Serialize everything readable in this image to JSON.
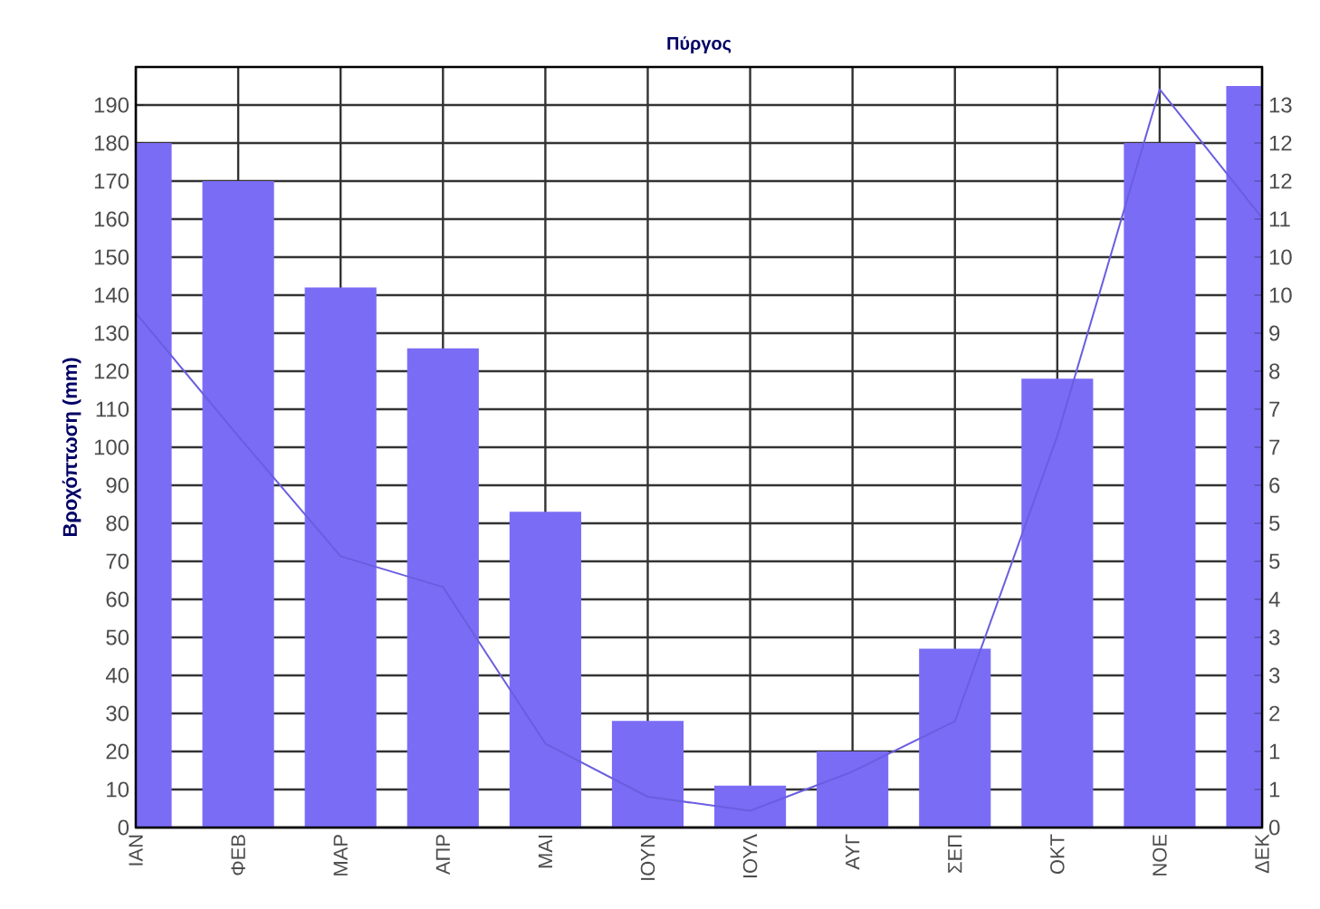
{
  "chart_data": {
    "type": "bar",
    "title": "Πύργος",
    "ylabel": "Βροχόπτωση (mm)",
    "categories": [
      "ΙΑΝ",
      "ΦΕΒ",
      "ΜΑΡ",
      "ΑΠΡ",
      "ΜΑΙ",
      "ΙΟΥΝ",
      "ΙΟΥΛ",
      "ΑΥΓ",
      "ΣΕΠ",
      "ΟΚΤ",
      "ΝΟΕ",
      "ΔΕΚ"
    ],
    "series": [
      {
        "color": "#7b6cf6",
        "values": [
          180,
          170,
          142,
          126,
          83,
          28,
          11,
          20,
          47,
          118,
          180,
          195
        ]
      },
      {
        "type": "line",
        "axis": "y2",
        "color": "#6a5ee0",
        "values": [
          9.2,
          7.0,
          4.85,
          4.3,
          1.5,
          0.55,
          0.3,
          1.0,
          1.9,
          7.0,
          13.2,
          10.9
        ]
      }
    ],
    "ylim": [
      0,
      200
    ],
    "yticks": [
      0,
      10,
      20,
      30,
      40,
      50,
      60,
      70,
      80,
      90,
      100,
      110,
      120,
      130,
      140,
      150,
      160,
      170,
      180,
      190
    ],
    "y2lim": [
      0,
      13.6
    ],
    "y2ticks": [
      0,
      {
        "value": 0.68,
        "label": "1"
      },
      {
        "value": 1.36,
        "label": "1"
      },
      {
        "value": 2.04,
        "label": "2"
      },
      {
        "value": 2.72,
        "label": "3"
      },
      {
        "value": 3.4,
        "label": "3"
      },
      {
        "value": 4.08,
        "label": "4"
      },
      {
        "value": 4.76,
        "label": "5"
      },
      {
        "value": 5.44,
        "label": "5"
      },
      {
        "value": 6.12,
        "label": "6"
      },
      {
        "value": 6.8,
        "label": "7"
      },
      {
        "value": 7.48,
        "label": "7"
      },
      {
        "value": 8.16,
        "label": "8"
      },
      {
        "value": 8.84,
        "label": "9"
      },
      {
        "value": 9.52,
        "label": "10"
      },
      {
        "value": 10.2,
        "label": "10"
      },
      {
        "value": 10.88,
        "label": "11"
      },
      {
        "value": 11.56,
        "label": "12"
      },
      {
        "value": 12.24,
        "label": "12"
      },
      {
        "value": 12.92,
        "label": "13"
      }
    ],
    "grid": true
  }
}
